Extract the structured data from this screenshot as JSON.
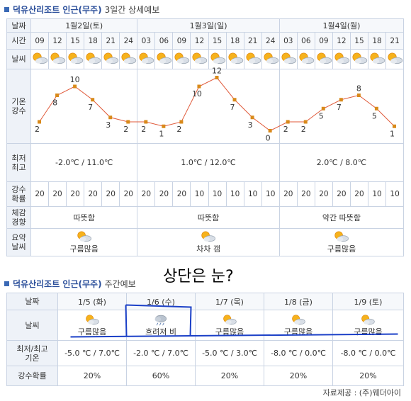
{
  "section1": {
    "name": "덕유산리조트 인근(무주)",
    "sub": "3일간 상세예보"
  },
  "row_labels": {
    "date": "날짜",
    "time": "시간",
    "weather": "날씨",
    "temp": "기온",
    "precip": "강수",
    "minmax_1": "최저",
    "minmax_2": "최고",
    "prob_1": "강수",
    "prob_2": "확률",
    "feel_1": "체감",
    "feel_2": "경향",
    "summary_1": "요약",
    "summary_2": "날씨"
  },
  "days": [
    {
      "date": "1월2일(토)",
      "times": [
        "09",
        "12",
        "15",
        "18",
        "21",
        "24"
      ],
      "temps": [
        2,
        8,
        10,
        7,
        3,
        2
      ],
      "probs": [
        "20",
        "20",
        "20",
        "20",
        "20",
        "20"
      ],
      "minmax": "-2.0℃ / 11.0℃",
      "feel": "따뜻함",
      "summary": "구름많음"
    },
    {
      "date": "1월3일(일)",
      "times": [
        "03",
        "06",
        "09",
        "12",
        "15",
        "18",
        "21",
        "24"
      ],
      "temps": [
        2,
        1,
        2,
        10,
        12,
        7,
        3,
        0
      ],
      "probs": [
        "20",
        "20",
        "20",
        "10",
        "10",
        "10",
        "10",
        "10"
      ],
      "minmax": "1.0℃ / 12.0℃",
      "feel": "따뜻함",
      "summary": "차차 갬"
    },
    {
      "date": "1월4일(월)",
      "times": [
        "03",
        "06",
        "09",
        "12",
        "15",
        "18",
        "21"
      ],
      "temps": [
        2,
        2,
        5,
        7,
        8,
        5,
        1
      ],
      "probs": [
        "20",
        "20",
        "20",
        "20",
        "20",
        "10",
        "10"
      ],
      "minmax": "2.0℃ / 8.0℃",
      "feel": "약간 따뜻함",
      "summary": "구름많음"
    }
  ],
  "hourly_weather_icon": "partly-cloudy-icon",
  "chart_data": {
    "type": "line",
    "x": [
      "1/2 09",
      "1/2 12",
      "1/2 15",
      "1/2 18",
      "1/2 21",
      "1/2 24",
      "1/3 03",
      "1/3 06",
      "1/3 09",
      "1/3 12",
      "1/3 15",
      "1/3 18",
      "1/3 21",
      "1/3 24",
      "1/4 03",
      "1/4 06",
      "1/4 09",
      "1/4 12",
      "1/4 15",
      "1/4 18",
      "1/4 21"
    ],
    "series": [
      {
        "values": [
          2,
          8,
          10,
          7,
          3,
          2,
          2,
          1,
          2,
          10,
          12,
          7,
          3,
          0,
          2,
          2,
          5,
          7,
          8,
          5,
          1
        ]
      }
    ],
    "ylim": [
      0,
      12
    ],
    "line_color": "#e05a3a",
    "marker_color": "#d98a1a"
  },
  "section2": {
    "name": "덕유산리조트 인근(무주)",
    "sub": "주간예보"
  },
  "weekly_labels": {
    "date": "날짜",
    "weather": "날씨",
    "minmax_1": "최저/최고",
    "minmax_2": "기온",
    "prob": "강수확률"
  },
  "weekly": [
    {
      "date": "1/5 (화)",
      "icon": "partly-cloudy-icon",
      "weather": "구름많음",
      "temps": "-5.0 ℃ / 7.0℃",
      "prob": "20%"
    },
    {
      "date": "1/6 (수)",
      "icon": "rain-cloud-icon",
      "weather": "흐려져 비",
      "temps": "-2.0 ℃ / 7.0℃",
      "prob": "60%"
    },
    {
      "date": "1/7 (목)",
      "icon": "partly-cloudy-icon",
      "weather": "구름많음",
      "temps": "-5.0 ℃ / 3.0℃",
      "prob": "20%"
    },
    {
      "date": "1/8 (금)",
      "icon": "partly-cloudy-icon",
      "weather": "구름많음",
      "temps": "-8.0 ℃ / 0.0℃",
      "prob": "20%"
    },
    {
      "date": "1/9 (토)",
      "icon": "partly-cloudy-icon",
      "weather": "구름많음",
      "temps": "-8.0 ℃ / 0.0℃",
      "prob": "20%"
    }
  ],
  "overlay_question": "상단은 눈?",
  "annotation_color": "#1a3fc7",
  "credit": "자료제공 : (주)웨더아이"
}
